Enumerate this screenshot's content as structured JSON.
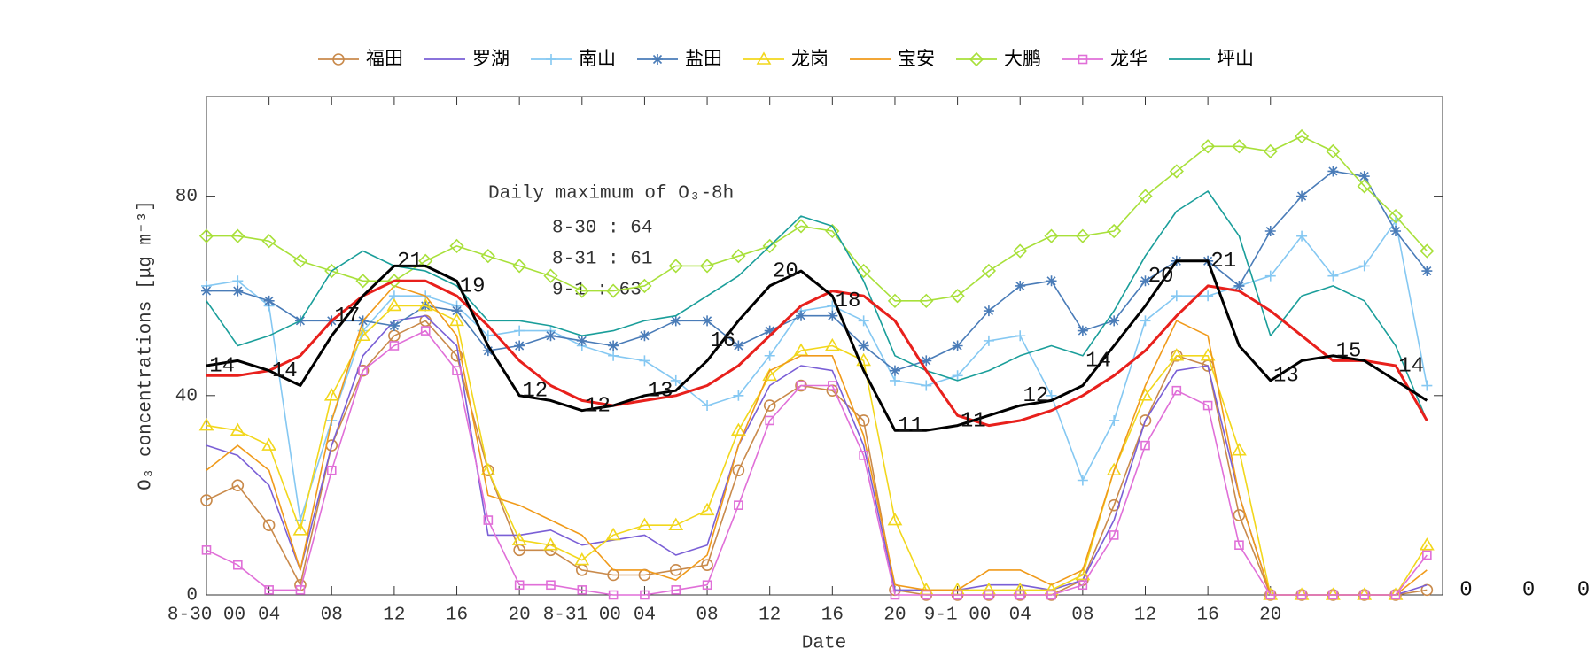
{
  "chart_data": {
    "type": "line",
    "xlabel": "Date",
    "ylabel": "O₃ concentrations [μg m⁻³]",
    "xlim": [
      0,
      79
    ],
    "ylim": [
      0,
      100
    ],
    "yticks": [
      0,
      40,
      80
    ],
    "xticks": [
      {
        "value": 0,
        "label": "8-30 00"
      },
      {
        "value": 4,
        "label": "04"
      },
      {
        "value": 8,
        "label": "08"
      },
      {
        "value": 12,
        "label": "12"
      },
      {
        "value": 16,
        "label": "16"
      },
      {
        "value": 20,
        "label": "20"
      },
      {
        "value": 24,
        "label": "8-31 00"
      },
      {
        "value": 28,
        "label": "04"
      },
      {
        "value": 32,
        "label": "08"
      },
      {
        "value": 36,
        "label": "12"
      },
      {
        "value": 40,
        "label": "16"
      },
      {
        "value": 44,
        "label": "20"
      },
      {
        "value": 48,
        "label": "9-1 00"
      },
      {
        "value": 52,
        "label": "04"
      },
      {
        "value": 56,
        "label": "08"
      },
      {
        "value": 60,
        "label": "12"
      },
      {
        "value": 64,
        "label": "16"
      },
      {
        "value": 68,
        "label": "20"
      }
    ],
    "x": [
      0,
      2,
      4,
      6,
      8,
      10,
      12,
      14,
      16,
      18,
      20,
      22,
      24,
      26,
      28,
      30,
      32,
      34,
      36,
      38,
      40,
      42,
      44,
      46,
      48,
      50,
      52,
      54,
      56,
      58,
      60,
      62,
      64,
      66,
      68,
      70,
      72,
      74,
      76,
      78
    ],
    "series": [
      {
        "name": "福田",
        "color": "#c98a4b",
        "marker": "circle",
        "values": [
          19,
          22,
          14,
          2,
          30,
          45,
          52,
          55,
          48,
          25,
          9,
          9,
          5,
          4,
          4,
          5,
          6,
          25,
          38,
          42,
          41,
          35,
          1,
          0,
          0,
          0,
          0,
          0,
          3,
          18,
          35,
          48,
          46,
          16,
          0,
          0,
          0,
          0,
          0,
          1
        ]
      },
      {
        "name": "罗湖",
        "color": "#7a5fd6",
        "marker": "none",
        "values": [
          30,
          28,
          22,
          5,
          30,
          48,
          55,
          56,
          50,
          12,
          12,
          13,
          10,
          11,
          12,
          8,
          10,
          30,
          42,
          46,
          45,
          30,
          1,
          1,
          1,
          2,
          2,
          1,
          3,
          15,
          35,
          45,
          46,
          20,
          0,
          0,
          0,
          0,
          0,
          2
        ]
      },
      {
        "name": "南山",
        "color": "#85c8f2",
        "marker": "plus",
        "values": [
          62,
          63,
          58,
          15,
          35,
          53,
          60,
          60,
          58,
          52,
          53,
          53,
          50,
          48,
          47,
          43,
          38,
          40,
          48,
          57,
          58,
          55,
          43,
          42,
          44,
          51,
          52,
          40,
          23,
          35,
          55,
          60,
          60,
          62,
          64,
          72,
          64,
          66,
          75,
          42
        ]
      },
      {
        "name": "盐田",
        "color": "#4a7cb8",
        "marker": "asterisk",
        "values": [
          61,
          61,
          59,
          55,
          55,
          55,
          54,
          58,
          57,
          49,
          50,
          52,
          51,
          50,
          52,
          55,
          55,
          50,
          53,
          56,
          56,
          50,
          45,
          47,
          50,
          57,
          62,
          63,
          53,
          55,
          63,
          67,
          67,
          62,
          73,
          80,
          85,
          84,
          73,
          65
        ]
      },
      {
        "name": "龙岗",
        "color": "#f2d71c",
        "marker": "triangle",
        "values": [
          34,
          33,
          30,
          13,
          40,
          52,
          58,
          58,
          55,
          25,
          11,
          10,
          7,
          12,
          14,
          14,
          17,
          33,
          44,
          49,
          50,
          47,
          15,
          1,
          1,
          1,
          1,
          1,
          4,
          25,
          40,
          48,
          48,
          29,
          0,
          0,
          0,
          0,
          0,
          10
        ]
      },
      {
        "name": "宝安",
        "color": "#f09a1a",
        "marker": "none",
        "values": [
          25,
          30,
          25,
          5,
          35,
          55,
          62,
          60,
          52,
          20,
          18,
          15,
          12,
          5,
          5,
          3,
          8,
          30,
          45,
          48,
          48,
          32,
          2,
          1,
          1,
          5,
          5,
          2,
          5,
          25,
          42,
          55,
          52,
          20,
          0,
          0,
          0,
          0,
          0,
          5
        ]
      },
      {
        "name": "大鹏",
        "color": "#a8e03a",
        "marker": "diamond",
        "values": [
          72,
          72,
          71,
          67,
          65,
          63,
          63,
          67,
          70,
          68,
          66,
          64,
          61,
          61,
          62,
          66,
          66,
          68,
          70,
          74,
          73,
          65,
          59,
          59,
          60,
          65,
          69,
          72,
          72,
          73,
          80,
          85,
          90,
          90,
          89,
          92,
          89,
          82,
          76,
          69
        ]
      },
      {
        "name": "龙华",
        "color": "#e06fd8",
        "marker": "square",
        "values": [
          9,
          6,
          1,
          1,
          25,
          45,
          50,
          53,
          45,
          15,
          2,
          2,
          1,
          0,
          0,
          1,
          2,
          18,
          35,
          42,
          42,
          28,
          0,
          0,
          0,
          0,
          0,
          0,
          2,
          12,
          30,
          41,
          38,
          10,
          0,
          0,
          0,
          0,
          0,
          8
        ]
      },
      {
        "name": "坪山",
        "color": "#1a9e9a",
        "marker": "none",
        "values": [
          59,
          50,
          52,
          55,
          65,
          69,
          66,
          65,
          62,
          55,
          55,
          54,
          52,
          53,
          55,
          56,
          60,
          64,
          70,
          76,
          74,
          63,
          48,
          45,
          43,
          45,
          48,
          50,
          48,
          57,
          68,
          77,
          81,
          72,
          52,
          60,
          62,
          59,
          50,
          35
        ]
      },
      {
        "color": "#e8201c",
        "marker": "none",
        "line_width": 3,
        "values": [
          44,
          44,
          45,
          48,
          55,
          60,
          63,
          63,
          60,
          54,
          47,
          42,
          39,
          38,
          39,
          40,
          42,
          46,
          52,
          58,
          61,
          60,
          55,
          45,
          36,
          34,
          35,
          37,
          40,
          44,
          49,
          56,
          62,
          61,
          57,
          52,
          47,
          47,
          46,
          35
        ]
      },
      {
        "color": "#000000",
        "marker": "none",
        "line_width": 3,
        "values": [
          46,
          47,
          45,
          42,
          52,
          60,
          66,
          66,
          63,
          50,
          40,
          39,
          37,
          38,
          40,
          41,
          47,
          55,
          62,
          65,
          60,
          45,
          33,
          33,
          34,
          36,
          38,
          39,
          42,
          50,
          58,
          67,
          67,
          50,
          43,
          47,
          48,
          47,
          43,
          39
        ]
      }
    ],
    "annotations": [
      {
        "x": 1,
        "y": 46,
        "text": "14"
      },
      {
        "x": 5,
        "y": 45,
        "text": "14"
      },
      {
        "x": 9,
        "y": 56,
        "text": "17"
      },
      {
        "x": 13,
        "y": 67,
        "text": "21"
      },
      {
        "x": 17,
        "y": 62,
        "text": "19"
      },
      {
        "x": 21,
        "y": 41,
        "text": "12"
      },
      {
        "x": 25,
        "y": 38,
        "text": "12"
      },
      {
        "x": 29,
        "y": 41,
        "text": "13"
      },
      {
        "x": 33,
        "y": 51,
        "text": "16"
      },
      {
        "x": 37,
        "y": 65,
        "text": "20"
      },
      {
        "x": 41,
        "y": 59,
        "text": "18"
      },
      {
        "x": 45,
        "y": 34,
        "text": "11"
      },
      {
        "x": 49,
        "y": 35,
        "text": "11"
      },
      {
        "x": 53,
        "y": 40,
        "text": "12"
      },
      {
        "x": 57,
        "y": 47,
        "text": "14"
      },
      {
        "x": 61,
        "y": 64,
        "text": "20"
      },
      {
        "x": 65,
        "y": 67,
        "text": "21"
      },
      {
        "x": 69,
        "y": 44,
        "text": "13"
      },
      {
        "x": 73,
        "y": 49,
        "text": "15"
      },
      {
        "x": 77,
        "y": 46,
        "text": "14"
      },
      {
        "x": 80.5,
        "y": 1,
        "text": "0"
      },
      {
        "x": 84.5,
        "y": 1,
        "text": "0"
      },
      {
        "x": 88,
        "y": 1,
        "text": "0"
      }
    ],
    "text_box": {
      "title": "Daily maximum of O₃-8h",
      "lines": [
        "8-30 : 64",
        "8-31 : 61",
        "9-1 : 63"
      ]
    }
  }
}
